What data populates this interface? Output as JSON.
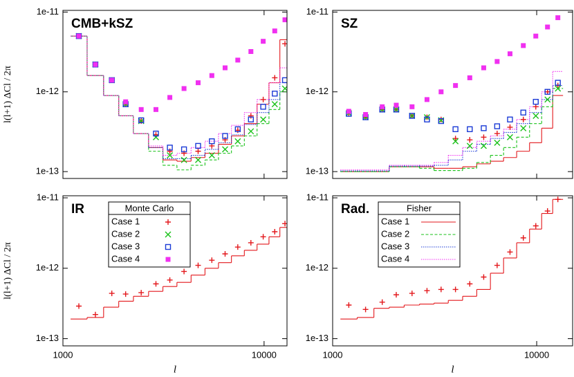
{
  "chart_data": [
    {
      "type": "scatter-step",
      "title": "CMB+kSZ",
      "ylabel": "l(l+1) ΔCl / 2π",
      "log_x": true,
      "log_y": true,
      "show_xticklabels": false,
      "xlim": [
        1000,
        13000
      ],
      "xticks": [
        1000,
        10000
      ],
      "ylim": [
        8.2e-14,
        1.05e-11
      ],
      "yticks": [
        {
          "value": 1e-13,
          "label": "1e-13"
        },
        {
          "value": 1e-12,
          "label": "1e-12"
        },
        {
          "value": 1e-11,
          "label": "1e-11"
        }
      ],
      "x": [
        1200,
        1450,
        1750,
        2050,
        2450,
        2900,
        3400,
        4000,
        4700,
        5500,
        6400,
        7400,
        8600,
        9900,
        11300,
        12700
      ],
      "monte_carlo": [
        {
          "values": [
            5e-12,
            2.2e-12,
            1.4e-12,
            7e-13,
            4.3e-13,
            2.9e-13,
            1.8e-13,
            1.7e-13,
            1.8e-13,
            2.1e-13,
            2.5e-13,
            3.3e-13,
            5e-13,
            8e-13,
            1.5e-12,
            4e-12
          ]
        },
        {
          "values": [
            5e-12,
            2.2e-12,
            1.4e-12,
            7e-13,
            4.3e-13,
            2.7e-13,
            1.6e-13,
            1.4e-13,
            1.4e-13,
            1.6e-13,
            1.9e-13,
            2.4e-13,
            3.2e-13,
            4.5e-13,
            7e-13,
            1.1e-12
          ]
        },
        {
          "values": [
            5e-12,
            2.2e-12,
            1.4e-12,
            7e-13,
            4.4e-13,
            3e-13,
            2e-13,
            1.9e-13,
            2.1e-13,
            2.4e-13,
            2.8e-13,
            3.4e-13,
            4.5e-13,
            6.5e-13,
            9.5e-13,
            1.4e-12
          ]
        },
        {
          "values": [
            5e-12,
            2.2e-12,
            1.4e-12,
            7.5e-13,
            6e-13,
            6e-13,
            8.5e-13,
            1.1e-12,
            1.3e-12,
            1.6e-12,
            2e-12,
            2.5e-12,
            3.2e-12,
            4.3e-12,
            5.8e-12,
            8e-12
          ]
        }
      ],
      "fisher": [
        {
          "values": [
            5e-12,
            1.6e-12,
            9e-13,
            5e-13,
            3e-13,
            2e-13,
            1.4e-13,
            1.35e-13,
            1.5e-13,
            1.7e-13,
            2.2e-13,
            2.8e-13,
            4e-13,
            7e-13,
            1.3e-12,
            4.5e-12
          ]
        },
        {
          "values": [
            5e-12,
            1.6e-12,
            9e-13,
            5e-13,
            3e-13,
            1.8e-13,
            1.2e-13,
            1.05e-13,
            1.2e-13,
            1.4e-13,
            1.7e-13,
            2.1e-13,
            2.8e-13,
            4e-13,
            6e-13,
            1e-12
          ]
        },
        {
          "values": [
            5e-12,
            1.6e-12,
            9e-13,
            5e-13,
            3e-13,
            2e-13,
            1.45e-13,
            1.45e-13,
            1.6e-13,
            1.9e-13,
            2.3e-13,
            2.9e-13,
            3.9e-13,
            5.5e-13,
            8e-13,
            1.3e-12
          ]
        },
        {
          "values": [
            5e-12,
            1.6e-12,
            9e-13,
            5e-13,
            3e-13,
            2.1e-13,
            1.6e-13,
            1.7e-13,
            2e-13,
            2.4e-13,
            3e-13,
            3.8e-13,
            5.5e-13,
            8e-13,
            1.3e-12,
            2e-12
          ]
        }
      ]
    },
    {
      "type": "scatter-step",
      "title": "SZ",
      "log_x": true,
      "log_y": true,
      "show_xticklabels": false,
      "xlim": [
        1000,
        15000
      ],
      "xticks": [
        1000,
        10000
      ],
      "ylim": [
        8.2e-14,
        1.05e-11
      ],
      "yticks": [
        {
          "value": 1e-13,
          "label": "1e-13"
        },
        {
          "value": 1e-12,
          "label": "1e-12"
        },
        {
          "value": 1e-11,
          "label": "1e-11"
        }
      ],
      "x": [
        1200,
        1450,
        1750,
        2050,
        2450,
        2900,
        3400,
        4000,
        4700,
        5500,
        6400,
        7400,
        8600,
        9900,
        11300,
        12700
      ],
      "monte_carlo": [
        {
          "values": [
            5.4e-13,
            4.8e-13,
            6e-13,
            6e-13,
            5e-13,
            4.8e-13,
            4.5e-13,
            2.6e-13,
            2.5e-13,
            2.7e-13,
            3e-13,
            3.6e-13,
            4.5e-13,
            6.5e-13,
            1e-12,
            1.2e-12
          ]
        },
        {
          "values": [
            5.4e-13,
            4.8e-13,
            6e-13,
            6e-13,
            5e-13,
            4.8e-13,
            4.4e-13,
            2.4e-13,
            2.1e-13,
            2.1e-13,
            2.3e-13,
            2.7e-13,
            3.5e-13,
            5e-13,
            8e-13,
            1.1e-12
          ]
        },
        {
          "values": [
            5.3e-13,
            4.8e-13,
            6e-13,
            6e-13,
            5e-13,
            4.5e-13,
            4.3e-13,
            3.4e-13,
            3.4e-13,
            3.5e-13,
            3.7e-13,
            4.5e-13,
            5.5e-13,
            7.5e-13,
            1e-12,
            1.3e-12
          ]
        },
        {
          "values": [
            5.7e-13,
            5.2e-13,
            6.5e-13,
            6.8e-13,
            6.5e-13,
            8e-13,
            1e-12,
            1.2e-12,
            1.5e-12,
            2e-12,
            2.4e-12,
            3e-12,
            3.8e-12,
            5e-12,
            6.5e-12,
            8.5e-12
          ]
        }
      ],
      "fisher": [
        {
          "values": [
            1e-13,
            1e-13,
            1e-13,
            1.15e-13,
            1.15e-13,
            1.15e-13,
            1.1e-13,
            1.1e-13,
            1.15e-13,
            1.25e-13,
            1.35e-13,
            1.5e-13,
            1.8e-13,
            2.3e-13,
            3.5e-13,
            9e-13
          ]
        },
        {
          "values": [
            1e-13,
            1e-13,
            1e-13,
            1.15e-13,
            1.15e-13,
            1.1e-13,
            1.03e-13,
            1.03e-13,
            1.1e-13,
            1.3e-13,
            1.6e-13,
            2e-13,
            2.7e-13,
            4e-13,
            6.5e-13,
            1.1e-12
          ]
        },
        {
          "values": [
            1.02e-13,
            1.02e-13,
            1.02e-13,
            1.17e-13,
            1.17e-13,
            1.17e-13,
            1.2e-13,
            1.4e-13,
            1.8e-13,
            2.2e-13,
            2.6e-13,
            3.1e-13,
            4e-13,
            5.5e-13,
            8e-13,
            1.2e-12
          ]
        },
        {
          "values": [
            1.05e-13,
            1.05e-13,
            1.05e-13,
            1.2e-13,
            1.2e-13,
            1.2e-13,
            1.3e-13,
            1.6e-13,
            2e-13,
            2.4e-13,
            2.8e-13,
            3.4e-13,
            4.5e-13,
            6.5e-13,
            1e-12,
            1.8e-12
          ]
        }
      ]
    },
    {
      "type": "scatter-step",
      "title": "IR",
      "ylabel": "l(l+1) ΔCl / 2π",
      "xlabel": "l",
      "log_x": true,
      "log_y": true,
      "show_xticklabels": true,
      "xlim": [
        1000,
        13000
      ],
      "xticks": [
        1000,
        10000
      ],
      "ylim": [
        7.9e-14,
        1.07e-11
      ],
      "yticks": [
        {
          "value": 1e-13,
          "label": "1e-13"
        },
        {
          "value": 1e-12,
          "label": "1e-12"
        },
        {
          "value": 1e-11,
          "label": "1e-11"
        }
      ],
      "x": [
        1200,
        1450,
        1750,
        2050,
        2450,
        2900,
        3400,
        4000,
        4700,
        5500,
        6400,
        7400,
        8600,
        9900,
        11300,
        12700
      ],
      "monte_carlo": [
        {
          "values": [
            2.9e-13,
            2.2e-13,
            4.4e-13,
            4.3e-13,
            4.5e-13,
            6e-13,
            6.8e-13,
            9e-13,
            1.1e-12,
            1.3e-12,
            1.6e-12,
            2e-12,
            2.3e-12,
            2.8e-12,
            3.3e-12,
            4.3e-12
          ]
        }
      ],
      "fisher": [
        {
          "values": [
            1.9e-13,
            2e-13,
            2.8e-13,
            3.4e-13,
            4e-13,
            4.7e-13,
            5.5e-13,
            6.3e-13,
            8e-13,
            1e-12,
            1.2e-12,
            1.5e-12,
            1.8e-12,
            2.2e-12,
            2.8e-12,
            3.8e-12
          ]
        }
      ],
      "legend": {
        "kind": "monte_carlo",
        "title": "Monte Carlo",
        "entries": [
          {
            "name": "Case 1",
            "color": "#e3171b",
            "marker": "plus"
          },
          {
            "name": "Case 2",
            "color": "#19c219",
            "marker": "cross"
          },
          {
            "name": "Case 3",
            "color": "#1a3ad6",
            "marker": "square-open"
          },
          {
            "name": "Case 4",
            "color": "#f030f0",
            "marker": "square-filled"
          }
        ]
      }
    },
    {
      "type": "scatter-step",
      "title": "Rad.",
      "xlabel": "l",
      "log_x": true,
      "log_y": true,
      "show_xticklabels": true,
      "xlim": [
        1000,
        15000
      ],
      "xticks": [
        1000,
        10000
      ],
      "ylim": [
        7.9e-14,
        1.07e-11
      ],
      "yticks": [
        {
          "value": 1e-13,
          "label": "1e-13"
        },
        {
          "value": 1e-12,
          "label": "1e-12"
        },
        {
          "value": 1e-11,
          "label": "1e-11"
        }
      ],
      "x": [
        1200,
        1450,
        1750,
        2050,
        2450,
        2900,
        3400,
        4000,
        4700,
        5500,
        6400,
        7400,
        8600,
        9900,
        11300,
        12700
      ],
      "monte_carlo": [
        {
          "values": [
            3e-13,
            2.6e-13,
            3.3e-13,
            4.2e-13,
            4.4e-13,
            4.8e-13,
            5e-13,
            5e-13,
            6e-13,
            7.5e-13,
            1.1e-12,
            1.7e-12,
            2.7e-12,
            4e-12,
            6.5e-12,
            9.5e-12
          ]
        }
      ],
      "fisher": [
        {
          "values": [
            1.9e-13,
            2e-13,
            2.7e-13,
            2.8e-13,
            3e-13,
            3.1e-13,
            3.2e-13,
            3.5e-13,
            4e-13,
            5e-13,
            8.5e-13,
            1.4e-12,
            2.3e-12,
            3.6e-12,
            6e-12,
            9.5e-12
          ]
        }
      ],
      "legend": {
        "kind": "fisher",
        "title": "Fisher",
        "entries": [
          {
            "name": "Case 1",
            "color": "#e3171b",
            "dash": "solid"
          },
          {
            "name": "Case 2",
            "color": "#19c219",
            "dash": "dashed"
          },
          {
            "name": "Case 3",
            "color": "#1a3ad6",
            "dash": "dotted"
          },
          {
            "name": "Case 4",
            "color": "#f030f0",
            "dash": "dotted"
          }
        ]
      }
    }
  ]
}
